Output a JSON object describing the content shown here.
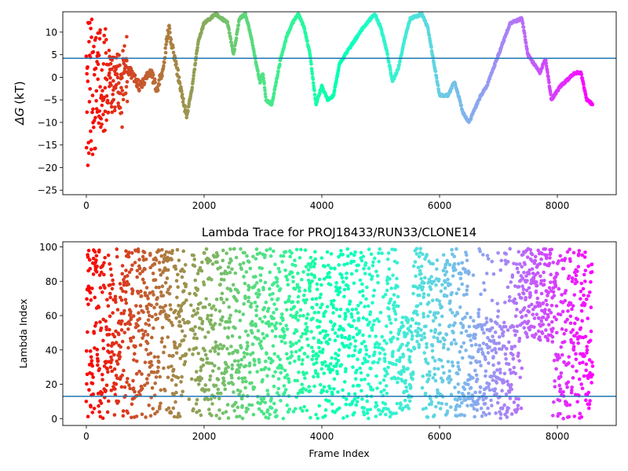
{
  "chart_data": [
    {
      "type": "scatter",
      "title": "",
      "xlabel": "",
      "ylabel_delta": "ΔG",
      "ylabel_kt": "(kT)",
      "xlim": [
        -400,
        9000
      ],
      "ylim": [
        -26,
        14.5
      ],
      "xticks": [
        0,
        2000,
        4000,
        6000,
        8000
      ],
      "yticks": [
        -25,
        -20,
        -15,
        -10,
        -5,
        0,
        5,
        10
      ],
      "hline": 4.2,
      "hline_color": "#1f77b4",
      "colormap": "rainbow (reversed along frame index: red at 0, violet at 8600)",
      "n_frames": 8600,
      "trace_keypoints": [
        [
          0,
          0
        ],
        [
          400,
          0
        ],
        [
          700,
          2
        ],
        [
          800,
          0
        ],
        [
          900,
          -2
        ],
        [
          1100,
          1
        ],
        [
          1200,
          -3
        ],
        [
          1300,
          2
        ],
        [
          1400,
          11
        ],
        [
          1500,
          4
        ],
        [
          1600,
          -2
        ],
        [
          1700,
          -9
        ],
        [
          1800,
          -2
        ],
        [
          1900,
          8
        ],
        [
          2000,
          12
        ],
        [
          2100,
          13
        ],
        [
          2200,
          14
        ],
        [
          2400,
          12
        ],
        [
          2500,
          5
        ],
        [
          2600,
          13
        ],
        [
          2700,
          14
        ],
        [
          2800,
          9
        ],
        [
          2900,
          2
        ],
        [
          2950,
          -1
        ],
        [
          3000,
          1
        ],
        [
          3050,
          -5
        ],
        [
          3150,
          -6
        ],
        [
          3300,
          4
        ],
        [
          3400,
          9
        ],
        [
          3500,
          12
        ],
        [
          3600,
          14
        ],
        [
          3700,
          11
        ],
        [
          3800,
          5
        ],
        [
          3900,
          -6
        ],
        [
          4000,
          -2
        ],
        [
          4100,
          -5
        ],
        [
          4200,
          -4
        ],
        [
          4300,
          3
        ],
        [
          4500,
          7
        ],
        [
          4700,
          11
        ],
        [
          4900,
          14
        ],
        [
          5000,
          11
        ],
        [
          5100,
          6
        ],
        [
          5200,
          -1
        ],
        [
          5300,
          2
        ],
        [
          5400,
          8
        ],
        [
          5500,
          13
        ],
        [
          5700,
          14
        ],
        [
          5800,
          11
        ],
        [
          6000,
          -4
        ],
        [
          6150,
          -4
        ],
        [
          6250,
          -1
        ],
        [
          6300,
          -3
        ],
        [
          6400,
          -8
        ],
        [
          6500,
          -10
        ],
        [
          6700,
          -4
        ],
        [
          6800,
          -2
        ],
        [
          7000,
          5
        ],
        [
          7200,
          12
        ],
        [
          7400,
          13
        ],
        [
          7500,
          5
        ],
        [
          7600,
          3
        ],
        [
          7700,
          1
        ],
        [
          7800,
          4
        ],
        [
          7900,
          -5
        ],
        [
          8050,
          -2
        ],
        [
          8300,
          1
        ],
        [
          8400,
          1
        ],
        [
          8500,
          -5
        ],
        [
          8600,
          -6
        ]
      ]
    },
    {
      "type": "scatter",
      "title": "Lambda Trace for PROJ18433/RUN33/CLONE14",
      "xlabel": "Frame Index",
      "ylabel": "Lambda Index",
      "xlim": [
        -400,
        9000
      ],
      "ylim": [
        -4,
        103
      ],
      "xticks": [
        0,
        2000,
        4000,
        6000,
        8000
      ],
      "yticks": [
        0,
        20,
        40,
        60,
        80,
        100
      ],
      "hline": 13,
      "hline_color": "#1f77b4",
      "colormap": "rainbow (reversed along frame index: red at 0, violet at 8600)",
      "n_frames": 8600,
      "lambda_range": [
        0,
        99
      ]
    }
  ]
}
